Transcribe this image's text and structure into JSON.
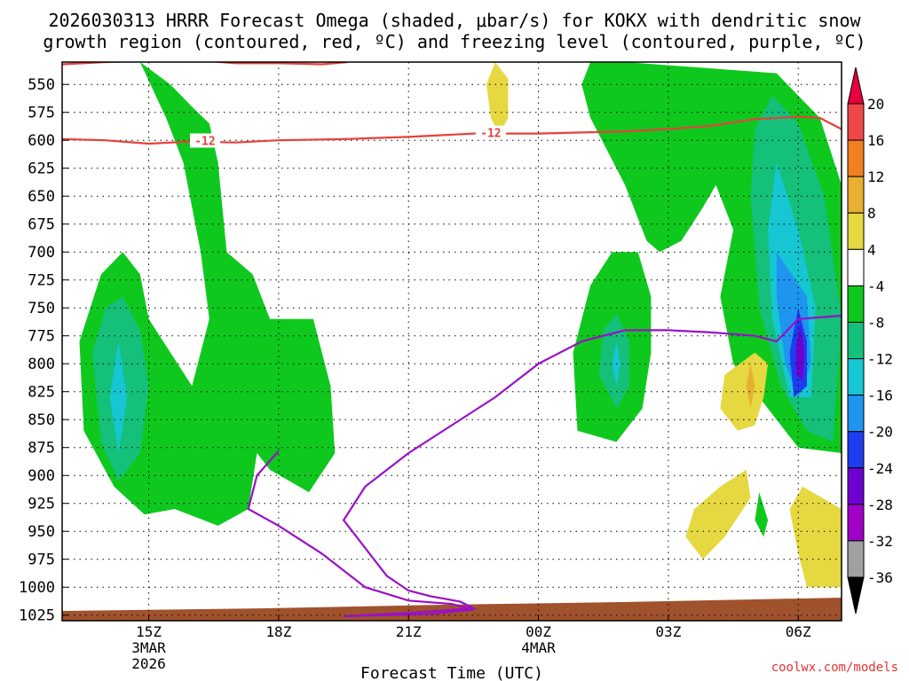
{
  "chart_data": {
    "type": "time-height contour",
    "title_line1": "2026030313 HRRR Forecast Omega (shaded, μbar/s) for KOKX with dendritic snow",
    "title_line2": "growth region (contoured, red, ºC) and freezing level (contoured, purple, ºC)",
    "xlabel": "Forecast Time (UTC)",
    "credit": "coolwx.com/models",
    "x_ticks": [
      {
        "hour": 15,
        "label": "15Z",
        "sub1": "3MAR",
        "sub2": "2026"
      },
      {
        "hour": 18,
        "label": "18Z",
        "sub1": "",
        "sub2": ""
      },
      {
        "hour": 21,
        "label": "21Z",
        "sub1": "",
        "sub2": ""
      },
      {
        "hour": 24,
        "label": "00Z",
        "sub1": "4MAR",
        "sub2": ""
      },
      {
        "hour": 27,
        "label": "03Z",
        "sub1": "",
        "sub2": ""
      },
      {
        "hour": 30,
        "label": "06Z",
        "sub1": "",
        "sub2": ""
      }
    ],
    "xlim": [
      13,
      31
    ],
    "y_levels_hPa": [
      550,
      575,
      600,
      625,
      650,
      675,
      700,
      725,
      750,
      775,
      800,
      825,
      850,
      875,
      900,
      925,
      950,
      975,
      1000,
      1025
    ],
    "ylim_hPa": [
      530,
      1030
    ],
    "colorbar": {
      "levels": [
        20,
        16,
        12,
        8,
        4,
        -4,
        -8,
        -12,
        -16,
        -20,
        -24,
        -28,
        -32,
        -36
      ],
      "colors": [
        "#e8003e",
        "#f04848",
        "#f08020",
        "#e8b030",
        "#e6d840",
        "#ffffff",
        "#0fc81e",
        "#14c07a",
        "#16c6d2",
        "#1e96f0",
        "#1e3cf0",
        "#6e00d2",
        "#a000c8",
        "#a0a0a0",
        "#000000"
      ]
    },
    "contour_labels": [
      {
        "label": "-12",
        "hour": 16.3,
        "hPa": 601
      },
      {
        "label": "-12",
        "hour": 22.9,
        "hPa": 594
      }
    ],
    "dgz_minus12_line": [
      [
        13,
        599
      ],
      [
        14,
        600
      ],
      [
        15,
        603
      ],
      [
        16,
        601
      ],
      [
        17,
        602
      ],
      [
        18,
        600
      ],
      [
        19.5,
        599
      ],
      [
        21,
        597
      ],
      [
        22.5,
        594
      ],
      [
        24,
        594
      ],
      [
        25,
        593
      ],
      [
        26,
        592
      ],
      [
        27,
        590
      ],
      [
        28,
        587
      ],
      [
        29,
        581
      ],
      [
        30,
        579
      ],
      [
        30.5,
        580
      ],
      [
        31,
        590
      ]
    ],
    "dgz_minus12_top_line": [
      [
        13,
        532
      ],
      [
        14,
        530
      ],
      [
        16,
        528
      ],
      [
        17,
        531
      ],
      [
        17.5,
        531
      ],
      [
        18,
        531
      ],
      [
        19,
        532
      ],
      [
        19.6,
        530
      ]
    ],
    "freezing_level_line": [
      [
        18,
        878
      ],
      [
        17.5,
        900
      ],
      [
        17.3,
        930
      ],
      [
        18,
        945
      ],
      [
        19,
        970
      ],
      [
        20,
        1000
      ],
      [
        21,
        1012
      ],
      [
        22,
        1015
      ],
      [
        22.5,
        1020
      ],
      [
        21.5,
        1024
      ],
      [
        20.5,
        1025
      ],
      [
        19.5,
        1026
      ],
      [
        21,
        1023
      ],
      [
        22.5,
        1019
      ],
      [
        22.2,
        1013
      ],
      [
        21.5,
        1008
      ],
      [
        21,
        1003
      ],
      [
        20.5,
        990
      ],
      [
        20,
        965
      ],
      [
        19.5,
        940
      ],
      [
        20,
        910
      ],
      [
        21,
        880
      ],
      [
        22,
        855
      ],
      [
        23,
        830
      ],
      [
        24,
        800
      ],
      [
        25,
        780
      ],
      [
        26,
        770
      ],
      [
        27,
        770
      ],
      [
        28,
        772
      ],
      [
        29,
        775
      ],
      [
        29.5,
        780
      ],
      [
        30,
        760
      ],
      [
        31,
        757
      ]
    ],
    "omega_regions": [
      {
        "level": "-4 to -8",
        "color": "#0fc81e",
        "pts": [
          [
            14.8,
            530
          ],
          [
            15.5,
            550
          ],
          [
            16,
            570
          ],
          [
            16.4,
            585
          ],
          [
            16.6,
            620
          ],
          [
            16.8,
            700
          ],
          [
            17.4,
            720
          ],
          [
            17.8,
            760
          ],
          [
            18.8,
            760
          ],
          [
            19.2,
            820
          ],
          [
            19.3,
            880
          ],
          [
            18.7,
            915
          ],
          [
            17.8,
            895
          ],
          [
            17.5,
            880
          ],
          [
            17.3,
            930
          ],
          [
            16.6,
            945
          ],
          [
            15.6,
            930
          ],
          [
            14.9,
            935
          ],
          [
            14.2,
            910
          ],
          [
            13.5,
            860
          ],
          [
            13.4,
            780
          ],
          [
            13.9,
            720
          ],
          [
            14.4,
            700
          ],
          [
            14.8,
            720
          ],
          [
            15,
            760
          ],
          [
            16,
            820
          ],
          [
            16.4,
            760
          ],
          [
            16.2,
            700
          ],
          [
            15.8,
            620
          ],
          [
            15.4,
            580
          ],
          [
            14.8,
            530
          ]
        ]
      },
      {
        "level": "-8 to -12",
        "color": "#14c07a",
        "pts": [
          [
            14.4,
            740
          ],
          [
            14.8,
            770
          ],
          [
            15,
            820
          ],
          [
            14.8,
            880
          ],
          [
            14.3,
            905
          ],
          [
            13.9,
            870
          ],
          [
            13.7,
            790
          ],
          [
            14,
            750
          ],
          [
            14.4,
            740
          ]
        ]
      },
      {
        "level": "-12 to -16",
        "color": "#16c6d2",
        "pts": [
          [
            14.3,
            780
          ],
          [
            14.5,
            830
          ],
          [
            14.3,
            880
          ],
          [
            14.1,
            830
          ],
          [
            14.3,
            780
          ]
        ]
      },
      {
        "level": "-4 to -8",
        "color": "#0fc81e",
        "pts": [
          [
            25.2,
            530
          ],
          [
            26,
            530
          ],
          [
            29.5,
            540
          ],
          [
            30.5,
            580
          ],
          [
            31,
            640
          ],
          [
            31,
            880
          ],
          [
            30,
            875
          ],
          [
            29.5,
            850
          ],
          [
            28.5,
            800
          ],
          [
            28.2,
            740
          ],
          [
            28.5,
            680
          ],
          [
            28.1,
            640
          ],
          [
            27.8,
            660
          ],
          [
            27.3,
            690
          ],
          [
            26.8,
            700
          ],
          [
            26.5,
            690
          ],
          [
            26,
            640
          ],
          [
            25.6,
            610
          ],
          [
            25.2,
            580
          ],
          [
            25,
            550
          ],
          [
            25.2,
            530
          ]
        ]
      },
      {
        "level": "-4 to -8",
        "color": "#0fc81e",
        "pts": [
          [
            25.7,
            700
          ],
          [
            26.3,
            700
          ],
          [
            26.6,
            740
          ],
          [
            26.6,
            790
          ],
          [
            26.4,
            840
          ],
          [
            25.8,
            870
          ],
          [
            24.9,
            860
          ],
          [
            24.8,
            790
          ],
          [
            25.2,
            730
          ],
          [
            25.7,
            700
          ]
        ]
      },
      {
        "level": "-8 to -12",
        "color": "#14c07a",
        "pts": [
          [
            25.8,
            755
          ],
          [
            26.1,
            780
          ],
          [
            26.1,
            820
          ],
          [
            25.8,
            840
          ],
          [
            25.4,
            810
          ],
          [
            25.5,
            770
          ],
          [
            25.8,
            755
          ]
        ]
      },
      {
        "level": "-12 to -16",
        "color": "#16c6d2",
        "pts": [
          [
            25.8,
            780
          ],
          [
            25.9,
            800
          ],
          [
            25.8,
            820
          ],
          [
            25.7,
            800
          ],
          [
            25.8,
            780
          ]
        ]
      },
      {
        "level": "-8 to -12",
        "color": "#14c07a",
        "pts": [
          [
            29.4,
            560
          ],
          [
            30,
            585
          ],
          [
            30.6,
            650
          ],
          [
            31,
            760
          ],
          [
            30.8,
            870
          ],
          [
            30.2,
            860
          ],
          [
            29.6,
            820
          ],
          [
            29.1,
            750
          ],
          [
            28.9,
            650
          ],
          [
            29,
            590
          ],
          [
            29.4,
            560
          ]
        ]
      },
      {
        "level": "-12 to -16",
        "color": "#16c6d2",
        "pts": [
          [
            29.5,
            620
          ],
          [
            30,
            680
          ],
          [
            30.4,
            750
          ],
          [
            30.3,
            830
          ],
          [
            29.8,
            830
          ],
          [
            29.4,
            760
          ],
          [
            29.3,
            680
          ],
          [
            29.5,
            620
          ]
        ]
      },
      {
        "level": "-16 to -20",
        "color": "#1e96f0",
        "pts": [
          [
            29.5,
            700
          ],
          [
            30.2,
            740
          ],
          [
            30.3,
            800
          ],
          [
            30,
            830
          ],
          [
            29.7,
            800
          ],
          [
            29.5,
            740
          ],
          [
            29.5,
            700
          ]
        ]
      },
      {
        "level": "-20 to -24",
        "color": "#1e3cf0",
        "pts": [
          [
            30,
            750
          ],
          [
            30.2,
            780
          ],
          [
            30.2,
            820
          ],
          [
            29.9,
            830
          ],
          [
            29.8,
            790
          ],
          [
            30,
            750
          ]
        ]
      },
      {
        "level": "-24 to -28",
        "color": "#6e00d2",
        "pts": [
          [
            30.05,
            765
          ],
          [
            30.15,
            790
          ],
          [
            30.1,
            815
          ],
          [
            29.95,
            810
          ],
          [
            29.95,
            785
          ],
          [
            30.05,
            765
          ]
        ]
      },
      {
        "level": "-4 to -8",
        "color": "#0fc81e",
        "pts": [
          [
            29.1,
            915
          ],
          [
            29.3,
            940
          ],
          [
            29.2,
            955
          ],
          [
            29,
            940
          ],
          [
            29.1,
            915
          ]
        ]
      },
      {
        "level": "4 to 8",
        "color": "#e6d840",
        "pts": [
          [
            23,
            530
          ],
          [
            23.3,
            545
          ],
          [
            23.3,
            580
          ],
          [
            23.1,
            595
          ],
          [
            22.9,
            580
          ],
          [
            22.8,
            550
          ],
          [
            23,
            530
          ]
        ]
      },
      {
        "level": "4 to 8",
        "color": "#e6d840",
        "pts": [
          [
            29,
            790
          ],
          [
            29.3,
            800
          ],
          [
            29.2,
            830
          ],
          [
            29,
            855
          ],
          [
            28.6,
            860
          ],
          [
            28.2,
            840
          ],
          [
            28.3,
            810
          ],
          [
            29,
            790
          ]
        ]
      },
      {
        "level": "8 to 12",
        "color": "#e8b030",
        "pts": [
          [
            28.9,
            800
          ],
          [
            29,
            820
          ],
          [
            28.9,
            840
          ],
          [
            28.8,
            820
          ],
          [
            28.9,
            800
          ]
        ]
      },
      {
        "level": "4 to 8",
        "color": "#e6d840",
        "pts": [
          [
            28.8,
            895
          ],
          [
            28.9,
            920
          ],
          [
            28.3,
            955
          ],
          [
            27.8,
            975
          ],
          [
            27.4,
            955
          ],
          [
            27.6,
            930
          ],
          [
            28.2,
            910
          ],
          [
            28.8,
            895
          ]
        ]
      },
      {
        "level": "4 to 8",
        "color": "#e6d840",
        "pts": [
          [
            30.1,
            910
          ],
          [
            31,
            930
          ],
          [
            31,
            1000
          ],
          [
            30.2,
            1000
          ],
          [
            30,
            970
          ],
          [
            29.8,
            930
          ],
          [
            30.1,
            910
          ]
        ]
      }
    ]
  }
}
